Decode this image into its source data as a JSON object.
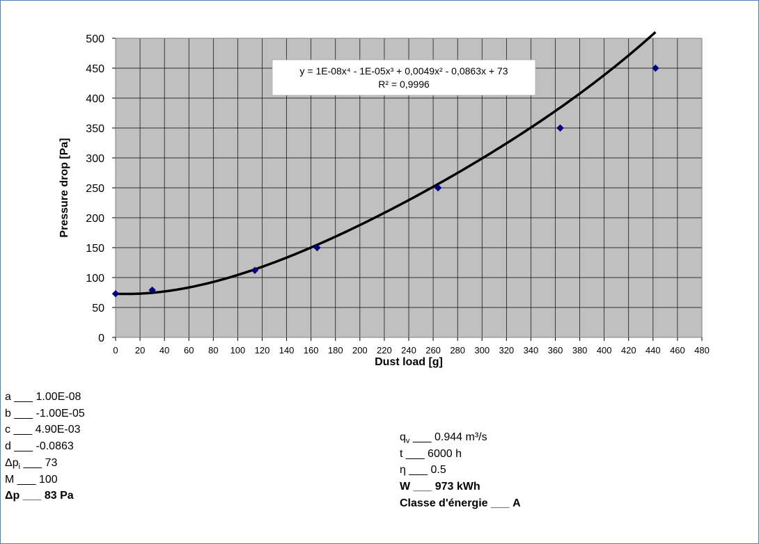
{
  "chart_data": {
    "type": "scatter",
    "title": "",
    "xlabel": "Dust load [g]",
    "ylabel": "Pressure drop [Pa]",
    "xlim": [
      0,
      480
    ],
    "ylim": [
      0,
      500
    ],
    "x_ticks": [
      0,
      20,
      40,
      60,
      80,
      100,
      120,
      140,
      160,
      180,
      200,
      220,
      240,
      260,
      280,
      300,
      320,
      340,
      360,
      380,
      400,
      420,
      440,
      460,
      480
    ],
    "y_ticks": [
      0,
      50,
      100,
      150,
      200,
      250,
      300,
      350,
      400,
      450,
      500
    ],
    "grid": true,
    "points": {
      "x": [
        0,
        30,
        114,
        165,
        264,
        364,
        442
      ],
      "y": [
        73,
        79,
        112,
        150,
        250,
        350,
        450
      ]
    },
    "trendline": {
      "type": "polynomial",
      "coefficients": {
        "a": 1e-08,
        "b": -1e-05,
        "c": 0.0049,
        "d": -0.0863,
        "e": 73
      },
      "x_range": [
        0,
        442
      ],
      "equation_text": "y = 1E-08x⁴ - 1E-05x³ + 0,0049x² - 0,0863x + 73",
      "r2_text": "R² = 0,9996"
    },
    "colors": {
      "plot_bg": "#c0c0c0",
      "grid": "#000000",
      "marker": "#000080",
      "trendline": "#000000"
    }
  },
  "params_left": [
    {
      "key": "a",
      "sub": "",
      "value": "1.00E-08",
      "bold": false
    },
    {
      "key": "b",
      "sub": "",
      "value": "-1.00E-05",
      "bold": false
    },
    {
      "key": "c",
      "sub": "",
      "value": "4.90E-03",
      "bold": false
    },
    {
      "key": "d",
      "sub": "",
      "value": "-0.0863",
      "bold": false
    },
    {
      "key": "Δp",
      "sub": "i",
      "value": "73",
      "bold": false
    },
    {
      "key": "M",
      "sub": "",
      "value": "100",
      "bold": false
    },
    {
      "key": "Δp",
      "sub": "",
      "value": "83 Pa",
      "bold": true
    }
  ],
  "params_right": [
    {
      "key": "q",
      "sub": "v",
      "value": "0.944 m³/s",
      "bold": false
    },
    {
      "key": "t",
      "sub": "",
      "value": "6000 h",
      "bold": false
    },
    {
      "key": "η",
      "sub": "",
      "value": "0.5",
      "bold": false
    },
    {
      "key": "W",
      "sub": "",
      "value": "973 kWh",
      "bold": true
    },
    {
      "key": "Classe d'énergie",
      "sub": "",
      "value": "A",
      "bold": true
    }
  ],
  "separator": "___"
}
